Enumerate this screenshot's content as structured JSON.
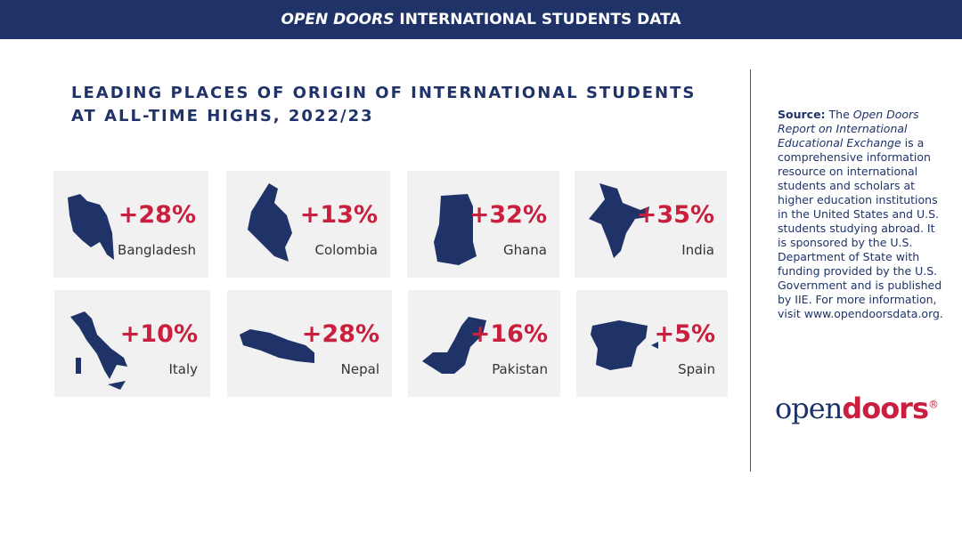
{
  "header": {
    "title_italic": "OPEN DOORS",
    "title_rest": "INTERNATIONAL STUDENTS DATA"
  },
  "title": {
    "line1": "LEADING PLACES OF ORIGIN OF INTERNATIONAL STUDENTS",
    "line2": "AT ALL-TIME HIGHS, 2022/23"
  },
  "cards": [
    {
      "change": "+28%",
      "name": "Bangladesh"
    },
    {
      "change": "+13%",
      "name": "Colombia"
    },
    {
      "change": "+32%",
      "name": "Ghana"
    },
    {
      "change": "+35%",
      "name": "India"
    },
    {
      "change": "+10%",
      "name": "Italy"
    },
    {
      "change": "+28%",
      "name": "Nepal"
    },
    {
      "change": "+16%",
      "name": "Pakistan"
    },
    {
      "change": "+5%",
      "name": "Spain"
    }
  ],
  "source": {
    "label": "Source:",
    "before": "The",
    "italic": "Open Doors Report on International Educational Exchange",
    "after": "is a comprehensive information resource on international students and scholars at higher education institutions in the United States and U.S. students studying abroad. It is sponsored by the U.S. Department of State with funding provided by the U.S. Government and is published by IIE. For more information, visit www.opendoorsdata.org."
  },
  "logo": {
    "open": "open",
    "doors": "doors",
    "mark": "®"
  }
}
